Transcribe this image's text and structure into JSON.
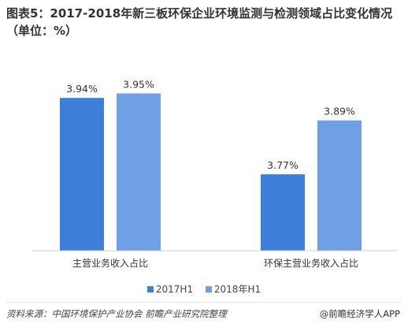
{
  "title": "图表5：2017-2018年新三板环保企业环境监测与检测领域占比变化情况（单位：%）",
  "source": "资料来源：中国环境保护产业协会  前瞻产业研究院整理",
  "brand": "@前瞻经济学人APP",
  "colors": {
    "s2017": "#3f7fdc",
    "s2018": "#6f9fe4",
    "axis": "#d0d0d0"
  },
  "chart_data": {
    "type": "bar",
    "categories": [
      "主营业务收入占比",
      "环保主营业务收入占比"
    ],
    "series": [
      {
        "name": "2017H1",
        "values": [
          3.94,
          3.77
        ],
        "labels": [
          "3.94%",
          "3.77%"
        ]
      },
      {
        "name": "2018年H1",
        "values": [
          3.95,
          3.89
        ],
        "labels": [
          "3.95%",
          "3.89%"
        ]
      }
    ],
    "ylim": [
      3.6,
      4.0
    ]
  }
}
